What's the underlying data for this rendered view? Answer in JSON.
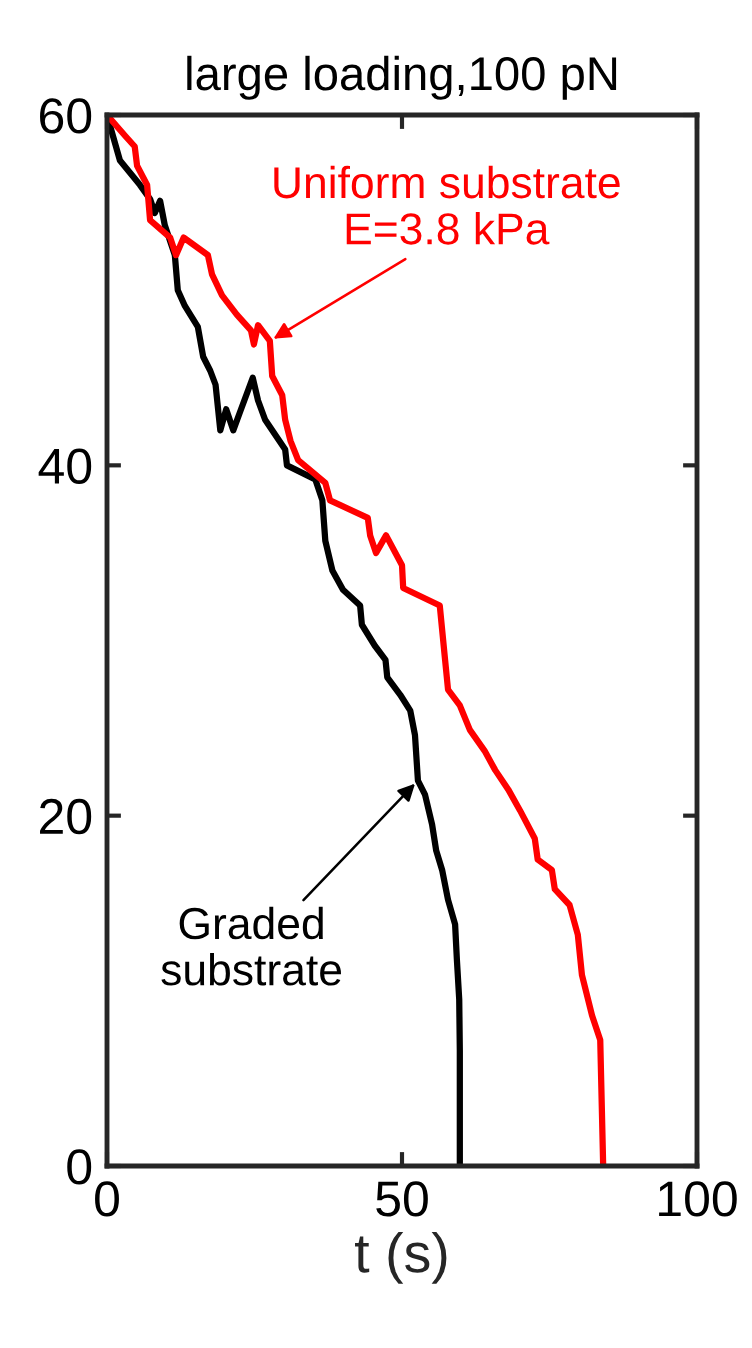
{
  "chart_data": {
    "type": "line",
    "title": "large loading,100 pN",
    "xlabel": "t (s)",
    "xlim": [
      0,
      100
    ],
    "ylim": [
      0,
      60
    ],
    "xticks": [
      0,
      50,
      100
    ],
    "yticks": [
      0,
      20,
      40,
      60
    ],
    "grid": false,
    "legend": false,
    "series": [
      {
        "color": "#000000",
        "x": [
          0,
          2.2,
          3.9,
          5.6,
          7.3,
          8.1,
          9.0,
          9.8,
          11.5,
          12,
          13.2,
          15.4,
          16.3,
          17.5,
          18.4,
          19.2,
          20.2,
          21.4,
          22.5,
          24.7,
          25.6,
          26.8,
          30.2,
          30.5,
          35.3,
          36.5,
          37,
          38.2,
          40,
          42.9,
          43.2,
          45.4,
          47.2,
          47.5,
          49.7,
          51.4,
          52.2,
          52.7,
          53.9,
          55.1,
          55.8,
          56.8,
          57.8,
          59,
          59.3,
          59.7,
          59.8,
          59.8
        ],
        "values": [
          60,
          57.4,
          56.7,
          56,
          55.2,
          54.4,
          55.1,
          53.7,
          52,
          50,
          49.1,
          47.9,
          46.2,
          45.4,
          44.6,
          42,
          43.2,
          42,
          43,
          45,
          43.7,
          42.6,
          40.9,
          40,
          39.2,
          38,
          35.7,
          34,
          32.9,
          32,
          30.9,
          29.7,
          28.9,
          27.9,
          26.9,
          26,
          24.6,
          22,
          21.2,
          19.5,
          18,
          16.9,
          15.2,
          13.8,
          11.8,
          9.5,
          6.6,
          0
        ]
      },
      {
        "color": "#ff0000",
        "x": [
          0,
          3.1,
          4.7,
          5.1,
          6.8,
          7.3,
          10.7,
          11.7,
          13,
          17.1,
          17.8,
          19.5,
          22,
          24.4,
          24.9,
          25.6,
          27.6,
          28,
          29.7,
          30.2,
          31.1,
          32.4,
          37,
          37.8,
          44.2,
          44.6,
          45.6,
          47.3,
          50,
          50.2,
          56.4,
          57.3,
          57.8,
          59.8,
          61.5,
          64,
          65.8,
          68,
          70,
          72.5,
          73,
          75.4,
          75.9,
          78.4,
          79.8,
          80.5,
          82.2,
          83.6,
          84.1
        ],
        "values": [
          60,
          58.8,
          58.2,
          57.1,
          56,
          54,
          53,
          52,
          53,
          52,
          50.9,
          49.7,
          48.6,
          47.7,
          46.9,
          48,
          47.1,
          45.1,
          44,
          42.6,
          41.4,
          40.3,
          39,
          38,
          37,
          36,
          35,
          36,
          34.3,
          33,
          32,
          28.9,
          27.2,
          26.3,
          24.9,
          23.7,
          22.6,
          21.5,
          20.3,
          18.7,
          17.5,
          16.9,
          15.8,
          14.9,
          13.2,
          10.9,
          8.6,
          7.2,
          0
        ]
      }
    ],
    "annotations": [
      {
        "text": "Graded\nsubstrate",
        "x": 52.7,
        "y": 22
      },
      {
        "text": "Uniform substrate\nE=3.8 kPa",
        "x": 27.6,
        "y": 47.1
      }
    ]
  }
}
